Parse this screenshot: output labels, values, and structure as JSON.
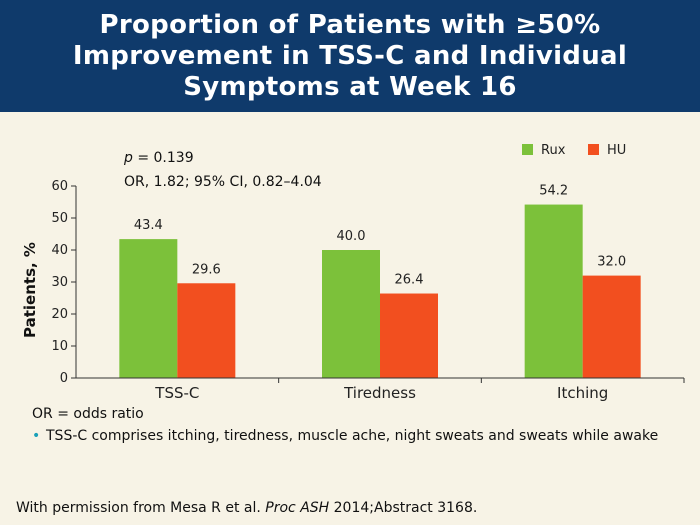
{
  "header": {
    "title_line1": "Proportion of Patients with ≥50%",
    "title_line2": "Improvement in TSS-C and Individual",
    "title_line3": "Symptoms at Week 16"
  },
  "annotations": {
    "p_label": "p",
    "p_value": " = 0.139",
    "or_text": "OR, 1.82; 95% CI, 0.82–4.04"
  },
  "notes": {
    "definition": "OR = odds ratio",
    "bullet": "TSS-C comprises itching, tiredness, muscle ache, night sweats and sweats while awake"
  },
  "citation": {
    "prefix": "With permission from Mesa R et al. ",
    "journal": "Proc ASH",
    "suffix": " 2014;Abstract 3168."
  },
  "colors": {
    "header_bg": "#0f3a6b",
    "rux": "#7cc13a",
    "hu": "#f24f1f",
    "bullet": "#1aa0b8"
  },
  "chart_data": {
    "type": "bar",
    "title": "",
    "xlabel": "",
    "ylabel": "Patients, %",
    "categories": [
      "TSS-C",
      "Tiredness",
      "Itching"
    ],
    "series": [
      {
        "name": "Rux",
        "values": [
          43.4,
          40.0,
          54.2
        ],
        "labels": [
          "43.4",
          "40.0",
          "54.2"
        ],
        "color": "#7cc13a"
      },
      {
        "name": "HU",
        "values": [
          29.6,
          26.4,
          32.0
        ],
        "labels": [
          "29.6",
          "26.4",
          "32.0"
        ],
        "color": "#f24f1f"
      }
    ],
    "ylim": [
      0,
      60
    ],
    "yticks": [
      "0",
      "10",
      "20",
      "30",
      "40",
      "50",
      "60"
    ],
    "legend": "top-right",
    "grid": false
  }
}
